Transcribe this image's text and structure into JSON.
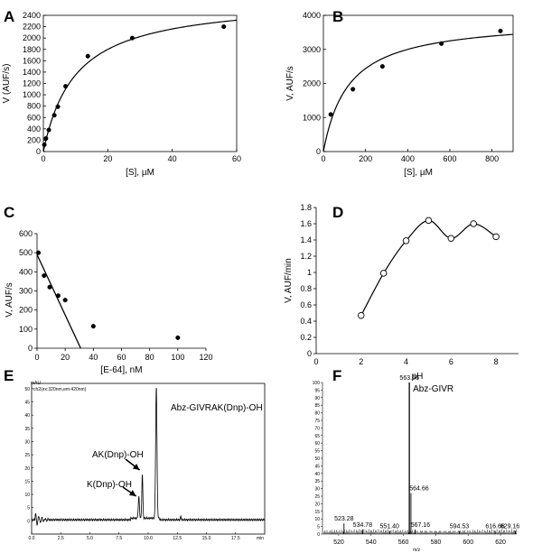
{
  "chart_data": [
    {
      "panel": "A",
      "type": "scatter",
      "xlabel": "[S], µM",
      "ylabel": "V (AUF/s)",
      "xlim": [
        0,
        60
      ],
      "ylim": [
        0,
        2400
      ],
      "xticks": [
        0,
        20,
        40,
        60
      ],
      "yticks": [
        0,
        200,
        400,
        600,
        800,
        1000,
        1200,
        1400,
        1600,
        1800,
        2000,
        2200,
        2400
      ],
      "points": [
        [
          0.3,
          120
        ],
        [
          0.8,
          230
        ],
        [
          1.7,
          380
        ],
        [
          3.4,
          640
        ],
        [
          4.5,
          790
        ],
        [
          6.9,
          1150
        ],
        [
          13.8,
          1680
        ],
        [
          27.6,
          2000
        ],
        [
          56,
          2200
        ]
      ],
      "fit": {
        "vmax": 2700,
        "km": 10
      }
    },
    {
      "panel": "B",
      "type": "scatter",
      "xlabel": "[S], µM",
      "ylabel": "V, AUF/s",
      "xlim": [
        0,
        900
      ],
      "ylim": [
        0,
        4000
      ],
      "xticks": [
        0,
        200,
        400,
        600,
        800
      ],
      "yticks": [
        0,
        1000,
        2000,
        3000,
        4000
      ],
      "points": [
        [
          35,
          1090
        ],
        [
          140,
          1830
        ],
        [
          280,
          2500
        ],
        [
          560,
          3170
        ],
        [
          840,
          3540
        ]
      ],
      "fit": {
        "vmax": 3900,
        "km": 120
      }
    },
    {
      "panel": "C",
      "type": "scatter",
      "xlabel": "[E-64], nM",
      "ylabel": "V, AUF/s",
      "xlim": [
        0,
        120
      ],
      "ylim": [
        0,
        600
      ],
      "xticks": [
        0,
        20,
        40,
        60,
        80,
        100,
        120
      ],
      "yticks": [
        0,
        100,
        200,
        300,
        400,
        500,
        600
      ],
      "points": [
        [
          1,
          500
        ],
        [
          5,
          380
        ],
        [
          9,
          320
        ],
        [
          15,
          275
        ],
        [
          20,
          252
        ],
        [
          40,
          115
        ],
        [
          100,
          55
        ]
      ],
      "line": [
        [
          0,
          490
        ],
        [
          31,
          0
        ]
      ]
    },
    {
      "panel": "D",
      "type": "scatter",
      "xlabel": "pH",
      "ylabel": "V, AUF/min",
      "xlim": [
        0,
        9
      ],
      "ylim": [
        0,
        1.8
      ],
      "xticks": [
        0,
        2,
        4,
        6,
        8
      ],
      "yticks": [
        0,
        0.2,
        0.4,
        0.6,
        0.8,
        1,
        1.2,
        1.4,
        1.6,
        1.8
      ],
      "ytick_labels": [
        "0",
        "0.2",
        "0.4",
        "0.6",
        "0.8",
        "1",
        "1.2",
        "1.4",
        "1.6",
        "1.8"
      ],
      "points": [
        [
          2,
          0.47
        ],
        [
          3,
          0.99
        ],
        [
          4,
          1.39
        ],
        [
          5,
          1.64
        ],
        [
          6,
          1.42
        ],
        [
          7,
          1.6
        ],
        [
          8,
          1.44
        ]
      ]
    },
    {
      "panel": "E",
      "type": "line",
      "unit_label": "mAU",
      "detector_label": "ch2(ex:320nm,em:420nm)",
      "xlim": [
        0,
        20
      ],
      "ylim": [
        -5,
        52
      ],
      "xticks": [
        0.0,
        2.5,
        5.0,
        7.5,
        10.0,
        12.5,
        15.0,
        17.5
      ],
      "xtick_labels": [
        "0.0",
        "2.5",
        "5.0",
        "7.5",
        "10.0",
        "12.5",
        "15.0",
        "17.5"
      ],
      "x_end_label": "min",
      "yticks": [
        0,
        5,
        10,
        15,
        20,
        25,
        30,
        35,
        40,
        45,
        50
      ],
      "peaks": [
        {
          "x": 9.2,
          "y": 8,
          "label": "K(Dnp)-OH"
        },
        {
          "x": 9.5,
          "y": 17,
          "label": "AK(Dnp)-OH"
        },
        {
          "x": 10.7,
          "y": 50,
          "label": "Abz-GIVRAK(Dnp)-OH"
        }
      ]
    },
    {
      "panel": "F",
      "type": "bar",
      "xlabel": "m/z",
      "xlim": [
        510,
        630
      ],
      "ylim": [
        0,
        100
      ],
      "xticks": [
        520,
        540,
        560,
        580,
        600,
        620
      ],
      "yticks": [
        0,
        5,
        10,
        15,
        20,
        25,
        30,
        35,
        40,
        45,
        50,
        55,
        60,
        65,
        70,
        75,
        80,
        85,
        90,
        95,
        100
      ],
      "peaks": [
        {
          "mz": 523.28,
          "intensity": 7,
          "label": "523.28"
        },
        {
          "mz": 534.78,
          "intensity": 3,
          "label": "534.78"
        },
        {
          "mz": 551.4,
          "intensity": 2,
          "label": "551.40"
        },
        {
          "mz": 563.66,
          "intensity": 100,
          "label": "563.66"
        },
        {
          "mz": 564.66,
          "intensity": 27,
          "label": "564.66"
        },
        {
          "mz": 567.16,
          "intensity": 3,
          "label": "567.16"
        },
        {
          "mz": 594.53,
          "intensity": 2,
          "label": "594.53"
        },
        {
          "mz": 616.66,
          "intensity": 2,
          "label": "616.66"
        },
        {
          "mz": 629.16,
          "intensity": 2,
          "label": "629.16"
        }
      ],
      "annotation": "Abz-GIVR"
    }
  ]
}
